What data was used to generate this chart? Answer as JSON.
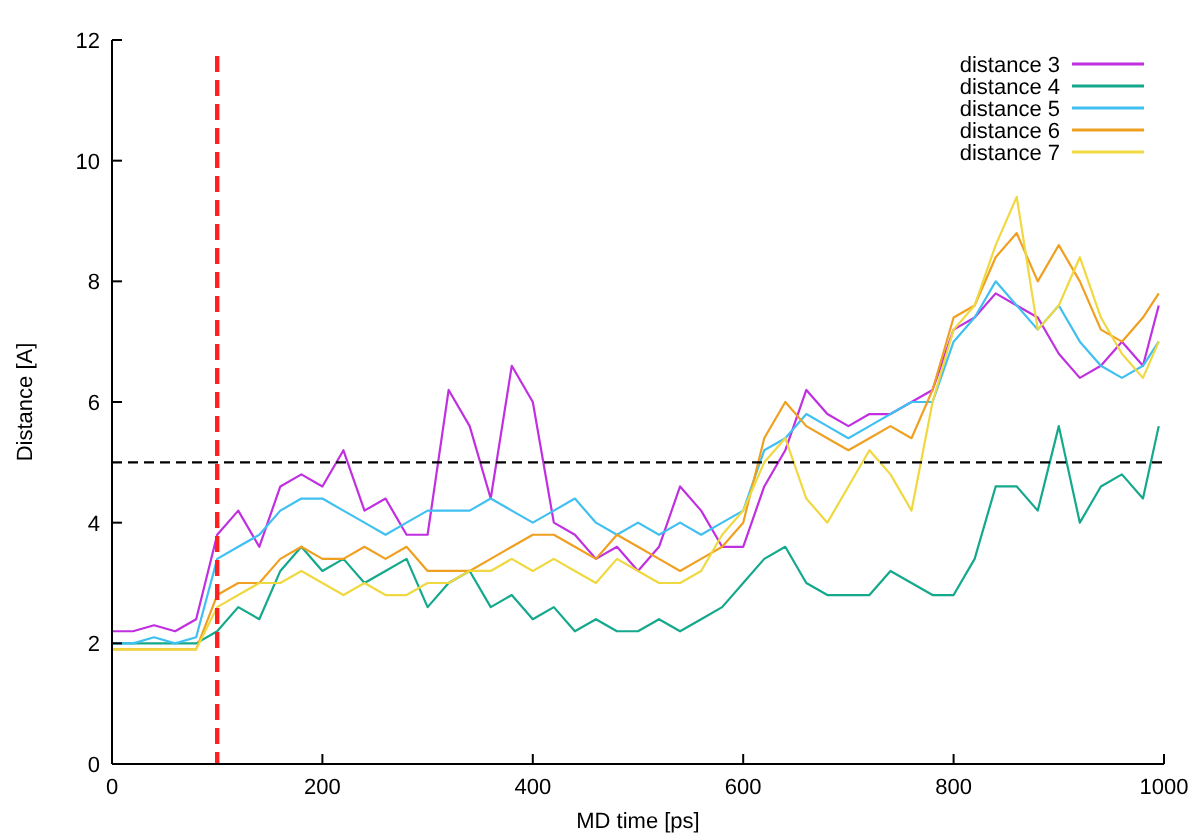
{
  "chart_data": {
    "type": "line",
    "xlabel": "MD time [ps]",
    "ylabel": "Distance [A]",
    "x": [
      0,
      20,
      40,
      60,
      80,
      100,
      120,
      140,
      160,
      180,
      200,
      220,
      240,
      260,
      280,
      300,
      320,
      340,
      360,
      380,
      400,
      420,
      440,
      460,
      480,
      500,
      520,
      540,
      560,
      580,
      600,
      620,
      640,
      660,
      680,
      700,
      720,
      740,
      760,
      780,
      800,
      820,
      840,
      860,
      880,
      900,
      920,
      940,
      960,
      980,
      995
    ],
    "series": [
      {
        "name": "distance 3",
        "color": "#c030e0",
        "values": [
          2.2,
          2.2,
          2.3,
          2.2,
          2.4,
          3.8,
          4.2,
          3.6,
          4.6,
          4.8,
          4.6,
          5.2,
          4.2,
          4.4,
          3.8,
          3.8,
          6.2,
          5.6,
          4.4,
          6.6,
          6.0,
          4.0,
          3.8,
          3.4,
          3.6,
          3.2,
          3.6,
          4.6,
          4.2,
          3.6,
          3.6,
          4.6,
          5.2,
          6.2,
          5.8,
          5.6,
          5.8,
          5.8,
          6.0,
          6.2,
          7.2,
          7.4,
          7.8,
          7.6,
          7.4,
          6.8,
          6.4,
          6.6,
          7.0,
          6.6,
          7.6
        ]
      },
      {
        "name": "distance 4",
        "color": "#14a88c",
        "values": [
          2.0,
          2.0,
          2.0,
          2.0,
          2.0,
          2.2,
          2.6,
          2.4,
          3.2,
          3.6,
          3.2,
          3.4,
          3.0,
          3.2,
          3.4,
          2.6,
          3.0,
          3.2,
          2.6,
          2.8,
          2.4,
          2.6,
          2.2,
          2.4,
          2.2,
          2.2,
          2.4,
          2.2,
          2.4,
          2.6,
          3.0,
          3.4,
          3.6,
          3.0,
          2.8,
          2.8,
          2.8,
          3.2,
          3.0,
          2.8,
          2.8,
          3.4,
          4.6,
          4.6,
          4.2,
          5.6,
          4.0,
          4.6,
          4.8,
          4.4,
          5.6
        ]
      },
      {
        "name": "distance 5",
        "color": "#40c0f0",
        "values": [
          2.0,
          2.0,
          2.1,
          2.0,
          2.1,
          3.4,
          3.6,
          3.8,
          4.2,
          4.4,
          4.4,
          4.2,
          4.0,
          3.8,
          4.0,
          4.2,
          4.2,
          4.2,
          4.4,
          4.2,
          4.0,
          4.2,
          4.4,
          4.0,
          3.8,
          4.0,
          3.8,
          4.0,
          3.8,
          4.0,
          4.2,
          5.2,
          5.4,
          5.8,
          5.6,
          5.4,
          5.6,
          5.8,
          6.0,
          6.0,
          7.0,
          7.4,
          8.0,
          7.6,
          7.2,
          7.6,
          7.0,
          6.6,
          6.4,
          6.6,
          7.0
        ]
      },
      {
        "name": "distance 6",
        "color": "#f0a020",
        "values": [
          1.9,
          1.9,
          1.9,
          1.9,
          1.9,
          2.8,
          3.0,
          3.0,
          3.4,
          3.6,
          3.4,
          3.4,
          3.6,
          3.4,
          3.6,
          3.2,
          3.2,
          3.2,
          3.4,
          3.6,
          3.8,
          3.8,
          3.6,
          3.4,
          3.8,
          3.6,
          3.4,
          3.2,
          3.4,
          3.6,
          4.0,
          5.4,
          6.0,
          5.6,
          5.4,
          5.2,
          5.4,
          5.6,
          5.4,
          6.2,
          7.4,
          7.6,
          8.4,
          8.8,
          8.0,
          8.6,
          8.0,
          7.2,
          7.0,
          7.4,
          7.8
        ]
      },
      {
        "name": "distance 7",
        "color": "#f0d840",
        "values": [
          1.9,
          1.9,
          1.9,
          1.9,
          1.9,
          2.6,
          2.8,
          3.0,
          3.0,
          3.2,
          3.0,
          2.8,
          3.0,
          2.8,
          2.8,
          3.0,
          3.0,
          3.2,
          3.2,
          3.4,
          3.2,
          3.4,
          3.2,
          3.0,
          3.4,
          3.2,
          3.0,
          3.0,
          3.2,
          3.8,
          4.2,
          5.0,
          5.4,
          4.4,
          4.0,
          4.6,
          5.2,
          4.8,
          4.2,
          6.0,
          7.2,
          7.6,
          8.6,
          9.4,
          7.2,
          7.6,
          8.4,
          7.4,
          6.8,
          6.4,
          7.0
        ]
      }
    ],
    "xlim": [
      0,
      1000
    ],
    "ylim": [
      0,
      12
    ],
    "xticks": [
      0,
      200,
      400,
      600,
      800,
      1000
    ],
    "yticks": [
      0,
      2,
      4,
      6,
      8,
      10,
      12
    ],
    "ref_lines": [
      {
        "axis": "x",
        "value": 100,
        "color": "#ff2020",
        "line_style": "dashed"
      },
      {
        "axis": "y",
        "value": 5,
        "color": "#000000",
        "line_style": "dashed"
      }
    ],
    "legend": "top right",
    "grid": false,
    "marker": "none",
    "line_style": "solid"
  }
}
